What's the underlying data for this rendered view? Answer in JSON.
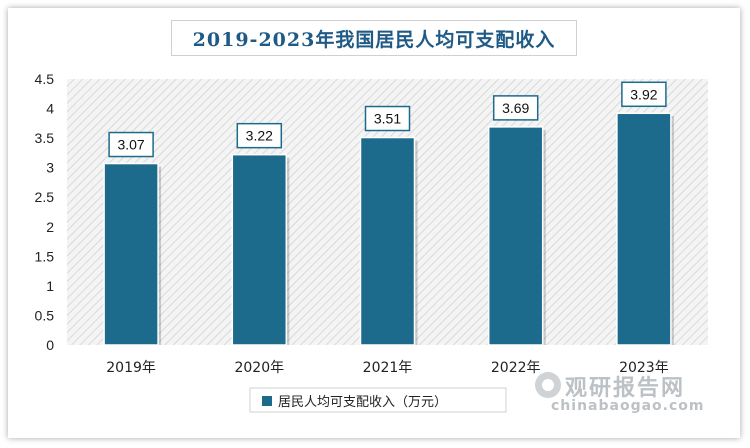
{
  "chart_data": {
    "type": "bar",
    "title": "2019-2023年我国居民人均可支配收入",
    "categories": [
      "2019年",
      "2020年",
      "2021年",
      "2022年",
      "2023年"
    ],
    "series": [
      {
        "name": "居民人均可支配收入（万元）",
        "values": [
          3.07,
          3.22,
          3.51,
          3.69,
          3.92
        ],
        "color": "#1c6b8c"
      }
    ],
    "data_labels": [
      "3.07",
      "3.22",
      "3.51",
      "3.69",
      "3.92"
    ],
    "y_ticks": [
      "0",
      "0.5",
      "1",
      "1.5",
      "2",
      "2.5",
      "3",
      "3.5",
      "4",
      "4.5"
    ],
    "ylim": [
      0,
      4.5
    ],
    "legend_position": "bottom-center",
    "plot_background": "hatched-gray"
  },
  "watermark": {
    "brand_cn": "观研报告网",
    "brand_en": "chinabaogao.com"
  }
}
